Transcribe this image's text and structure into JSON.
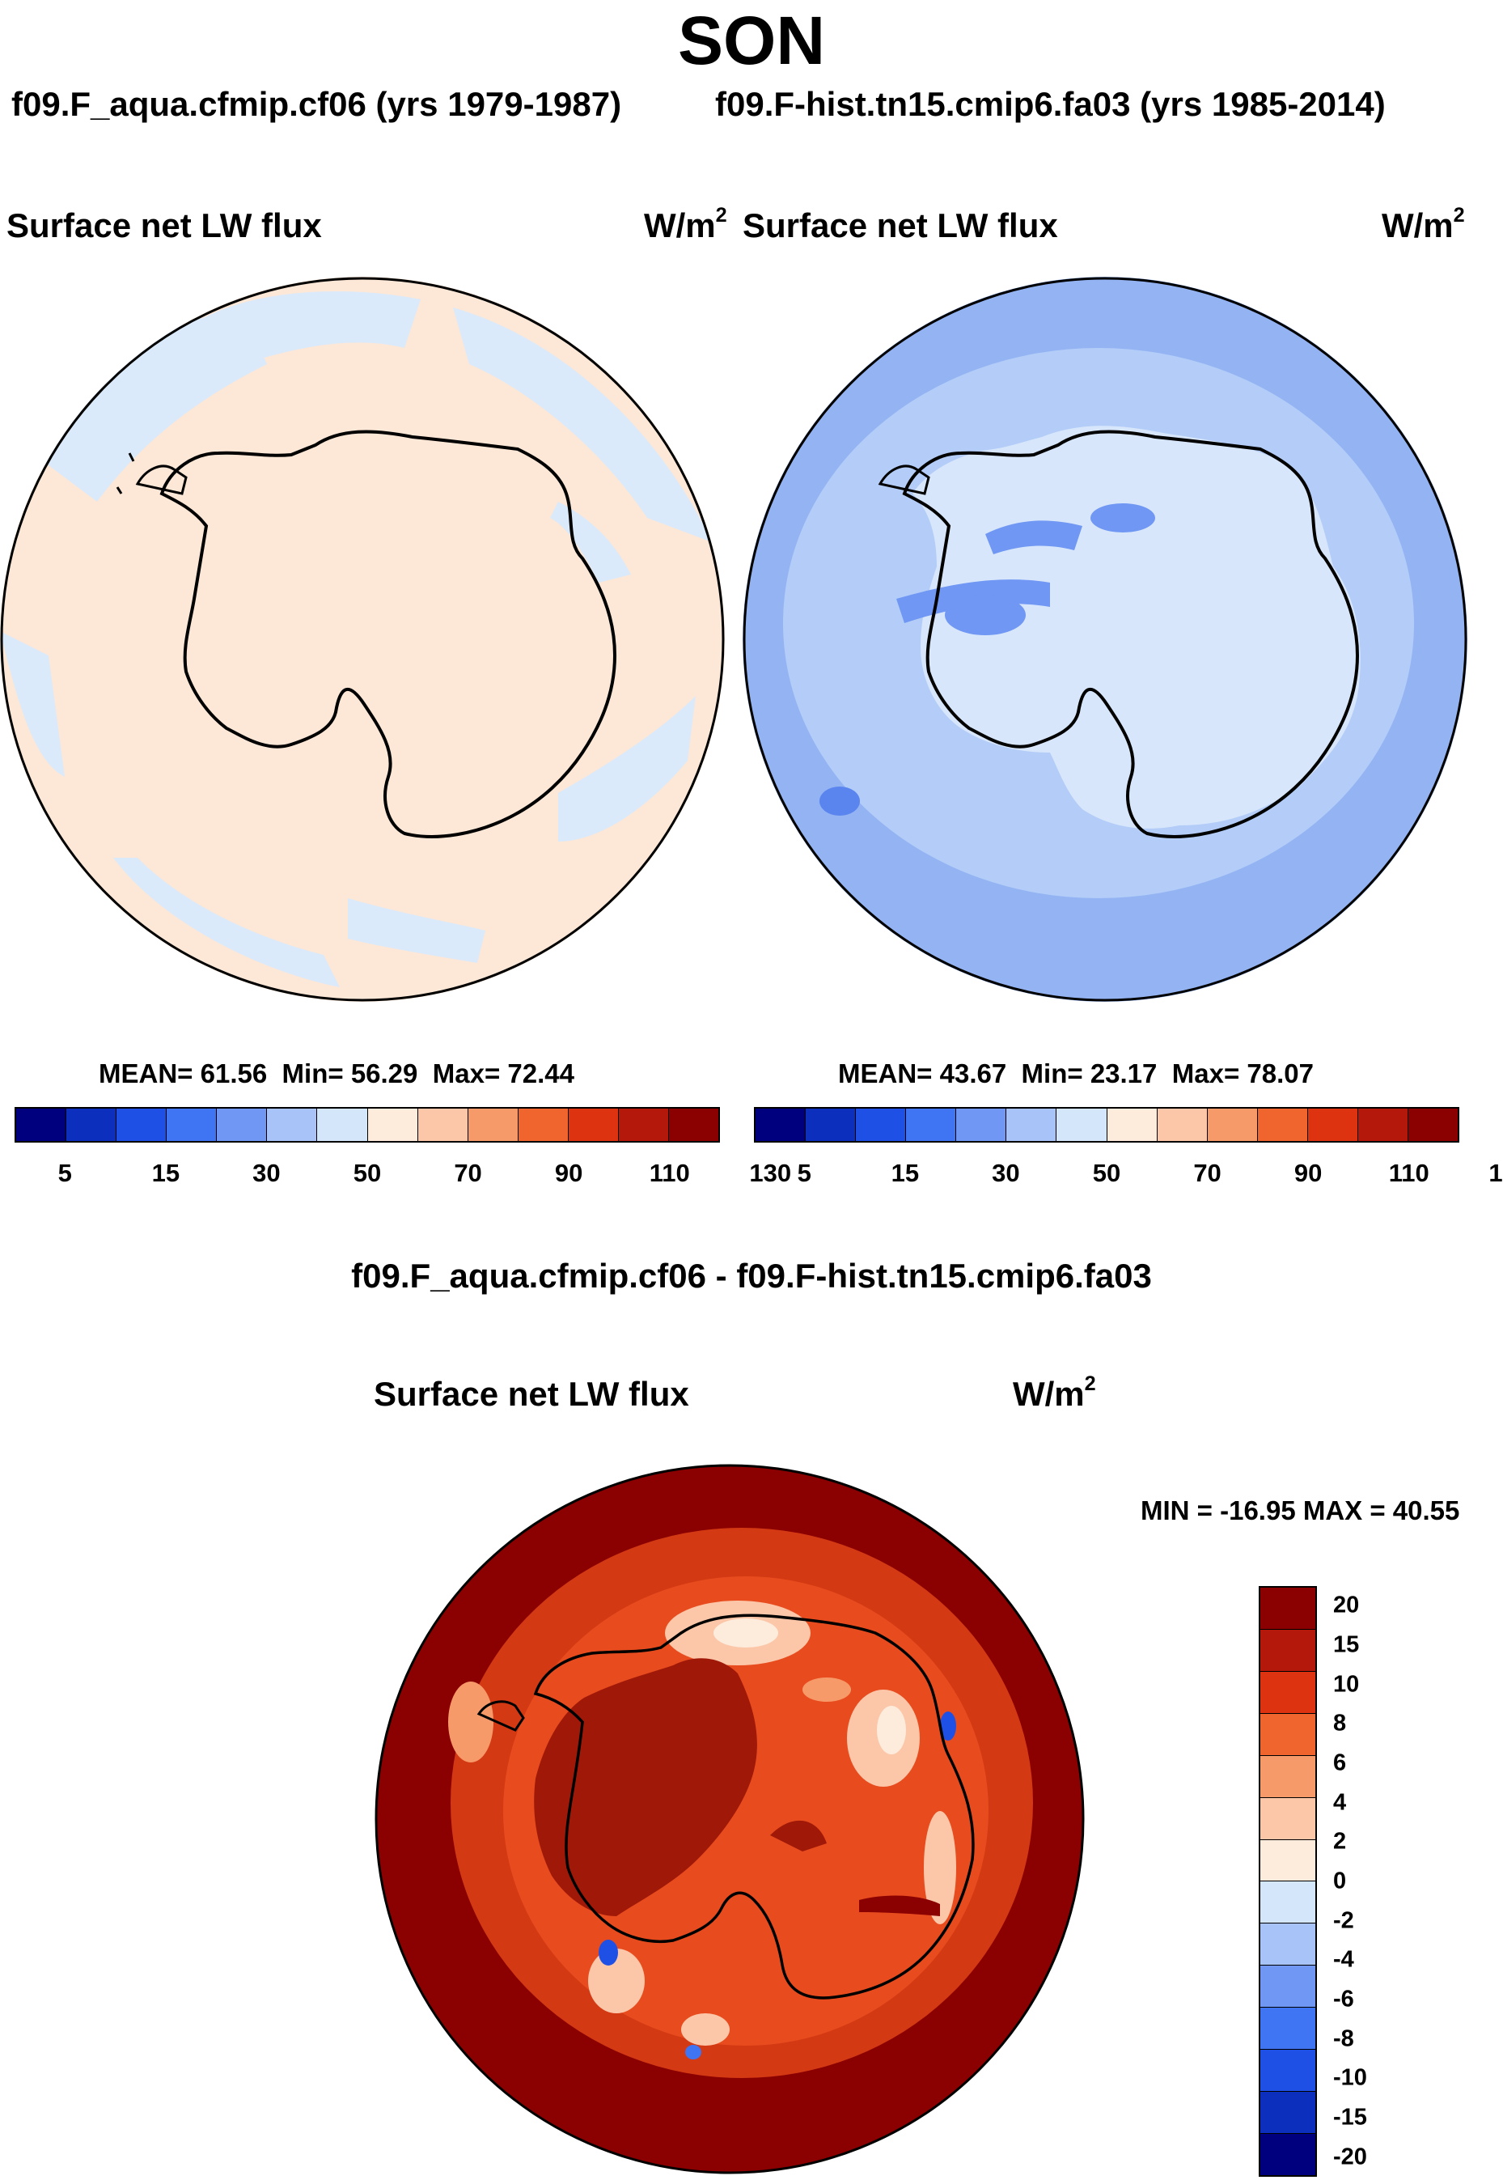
{
  "figure": {
    "season": "SON",
    "left_run": "f09.F_aqua.cfmip.cf06 (yrs 1979-1987)",
    "right_run": "f09.F-hist.tn15.cmip6.fa03 (yrs 1985-2014)",
    "diff_title": "f09.F_aqua.cfmip.cf06 - f09.F-hist.tn15.cmip6.fa03"
  },
  "panels": {
    "left": {
      "variable": "Surface net LW flux",
      "units": "W/m",
      "units_exp": "2",
      "mean_label": "MEAN=",
      "mean": "61.56",
      "min_label": "Min=",
      "min": "56.29",
      "max_label": "Max=",
      "max": "72.44",
      "fill_color": "#fde7d6",
      "patch_color": "#dbeafa"
    },
    "right": {
      "variable": "Surface net LW flux",
      "units": "W/m",
      "units_exp": "2",
      "mean_label": "MEAN=",
      "mean": "43.67",
      "min_label": "Min=",
      "min": "23.17",
      "max_label": "Max=",
      "max": "78.07",
      "fill_color": "#93b3f3",
      "inner_color": "#b3cdf8",
      "ice_color": "#d7e6fb"
    },
    "diff": {
      "variable": "Surface net LW flux",
      "units": "W/m",
      "units_exp": "2",
      "minmax_text": "MIN = -16.95 MAX =  40.55",
      "fill_color": "#8b0000",
      "ring_color": "#d33a14",
      "inner_color": "#e84c1e",
      "land_color": "#a01808"
    }
  },
  "colorbars": {
    "absolute": {
      "colors": [
        "#00007f",
        "#0d2fbd",
        "#1f50e6",
        "#3f74f2",
        "#6f97f3",
        "#a7c3f7",
        "#d4e6fa",
        "#fdebdc",
        "#fcc7a9",
        "#f79a6a",
        "#f0652d",
        "#dd3310",
        "#b3180a",
        "#8b0000"
      ],
      "labels": [
        "5",
        "15",
        "30",
        "50",
        "70",
        "90",
        "110",
        "130"
      ]
    },
    "difference": {
      "colors": [
        "#8b0000",
        "#b3180a",
        "#dd3310",
        "#f0652d",
        "#f79a6a",
        "#fcc7a9",
        "#fdebdc",
        "#d4e6fa",
        "#a7c3f7",
        "#6f97f3",
        "#3f74f2",
        "#1f50e6",
        "#0d2fbd",
        "#00007f"
      ],
      "labels": [
        "20",
        "15",
        "10",
        "8",
        "6",
        "4",
        "2",
        "0",
        "-2",
        "-4",
        "-6",
        "-8",
        "-10",
        "-15",
        "-20"
      ]
    }
  }
}
